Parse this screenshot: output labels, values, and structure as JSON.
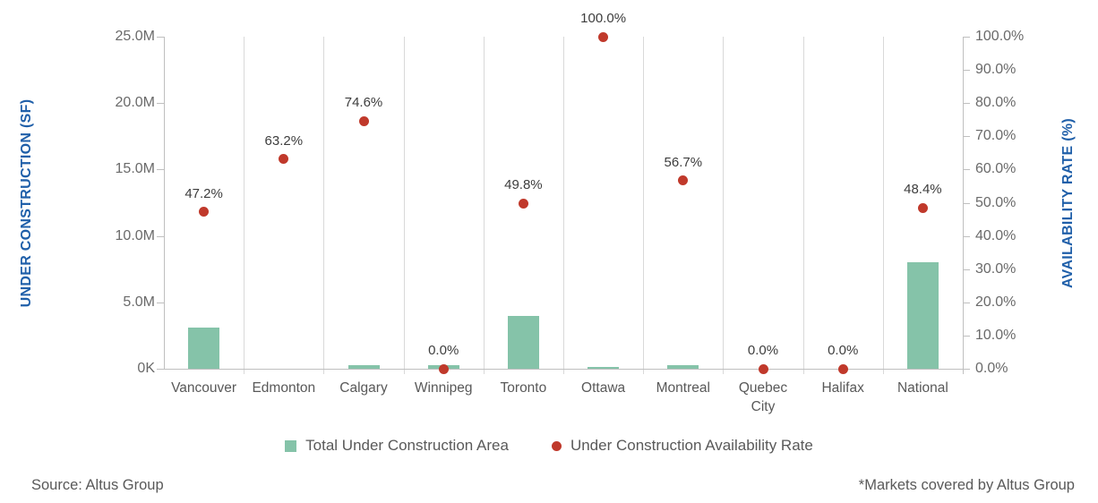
{
  "chart_data": {
    "type": "combo-bar-scatter",
    "categories": [
      "Vancouver",
      "Edmonton",
      "Calgary",
      "Winnipeg",
      "Toronto",
      "Ottawa",
      "Montreal",
      "Quebec City",
      "Halifax",
      "National"
    ],
    "series": [
      {
        "name": "Total Under Construction Area",
        "type": "bar",
        "axis": "left",
        "unit": "SF (millions)",
        "values": [
          3.1,
          0,
          0.25,
          0.3,
          4.0,
          0.15,
          0.3,
          0,
          0,
          8.05
        ]
      },
      {
        "name": "Under Construction Availability Rate",
        "type": "scatter",
        "axis": "right",
        "unit": "percent",
        "values": [
          47.2,
          63.2,
          74.6,
          0.0,
          49.8,
          100.0,
          56.7,
          0.0,
          0.0,
          48.4
        ],
        "labels": [
          "47.2%",
          "63.2%",
          "74.6%",
          "0.0%",
          "49.8%",
          "100.0%",
          "56.7%",
          "0.0%",
          "0.0%",
          "48.4%"
        ]
      }
    ],
    "left_axis": {
      "title": "UNDER CONSTRUCTION (SF)",
      "min": 0,
      "max": 25000000,
      "ticks": [
        "25.0M",
        "20.0M",
        "15.0M",
        "10.0M",
        "5.0M",
        "0K"
      ]
    },
    "right_axis": {
      "title": "AVAILABILITY RATE (%)",
      "min": 0,
      "max": 100,
      "ticks": [
        "100.0%",
        "90.0%",
        "80.0%",
        "70.0%",
        "60.0%",
        "50.0%",
        "40.0%",
        "30.0%",
        "20.0%",
        "10.0%",
        "0.0%"
      ]
    },
    "grid": "vertical-only",
    "legend_position": "bottom-center",
    "legend": [
      {
        "label": "Total Under Construction Area",
        "swatch": "green-square"
      },
      {
        "label": "Under Construction Availability Rate",
        "swatch": "red-dot"
      }
    ],
    "colors": {
      "bar": "#85c3a9",
      "dot": "#c0392b",
      "axis_title": "#1f5fa9",
      "tick_label": "#6a6a6a",
      "gridline": "#d9d9d9"
    }
  },
  "footer": {
    "source": "Source: Altus Group",
    "note": "*Markets covered by Altus Group"
  }
}
